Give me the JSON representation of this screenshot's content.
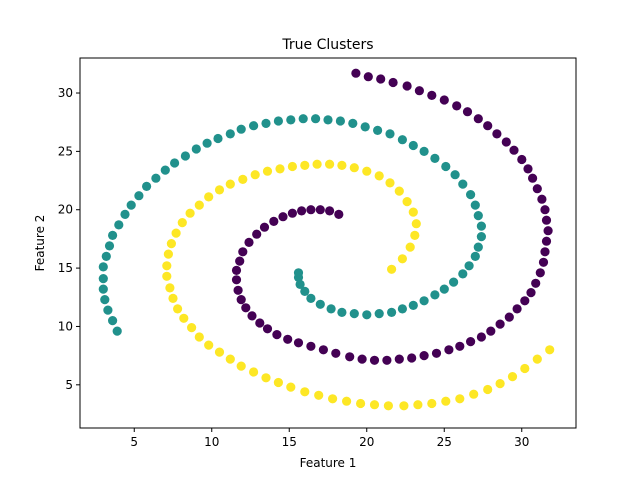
{
  "chart_data": {
    "type": "scatter",
    "title": "True Clusters",
    "xlabel": "Feature 1",
    "ylabel": "Feature 2",
    "xlim": [
      1.5,
      33.5
    ],
    "ylim": [
      1.3,
      33.0
    ],
    "xticks": [
      5,
      10,
      15,
      20,
      25,
      30
    ],
    "yticks": [
      5,
      10,
      15,
      20,
      25,
      30
    ],
    "grid": false,
    "legend": "none",
    "series": [
      {
        "color": "#440154",
        "points": [
          [
            18.2,
            19.6
          ],
          [
            17.6,
            19.9
          ],
          [
            17.0,
            20.0
          ],
          [
            16.4,
            20.0
          ],
          [
            15.8,
            19.9
          ],
          [
            15.2,
            19.7
          ],
          [
            14.6,
            19.4
          ],
          [
            14.0,
            19.0
          ],
          [
            13.4,
            18.5
          ],
          [
            12.9,
            17.9
          ],
          [
            12.4,
            17.2
          ],
          [
            12.0,
            16.4
          ],
          [
            11.8,
            15.6
          ],
          [
            11.6,
            14.8
          ],
          [
            11.6,
            14.0
          ],
          [
            11.7,
            13.1
          ],
          [
            11.9,
            12.3
          ],
          [
            12.2,
            11.6
          ],
          [
            12.6,
            10.9
          ],
          [
            13.1,
            10.3
          ],
          [
            13.6,
            9.8
          ],
          [
            14.2,
            9.3
          ],
          [
            14.9,
            8.9
          ],
          [
            15.6,
            8.6
          ],
          [
            16.4,
            8.3
          ],
          [
            17.2,
            8.0
          ],
          [
            18.0,
            7.7
          ],
          [
            18.9,
            7.4
          ],
          [
            19.7,
            7.2
          ],
          [
            20.5,
            7.1
          ],
          [
            21.3,
            7.1
          ],
          [
            22.1,
            7.2
          ],
          [
            22.9,
            7.3
          ],
          [
            23.7,
            7.5
          ],
          [
            24.5,
            7.7
          ],
          [
            25.3,
            8.0
          ],
          [
            26.0,
            8.3
          ],
          [
            26.7,
            8.7
          ],
          [
            27.4,
            9.1
          ],
          [
            28.0,
            9.6
          ],
          [
            28.6,
            10.2
          ],
          [
            29.2,
            10.8
          ],
          [
            29.7,
            11.5
          ],
          [
            30.2,
            12.2
          ],
          [
            30.6,
            12.9
          ],
          [
            30.9,
            13.7
          ],
          [
            31.2,
            14.6
          ],
          [
            31.4,
            15.5
          ],
          [
            31.5,
            16.4
          ],
          [
            31.6,
            17.3
          ],
          [
            31.7,
            18.2
          ],
          [
            31.6,
            19.1
          ],
          [
            31.5,
            20.0
          ],
          [
            31.3,
            20.9
          ],
          [
            31.0,
            21.8
          ],
          [
            30.7,
            22.7
          ],
          [
            30.4,
            23.5
          ],
          [
            30.0,
            24.3
          ],
          [
            29.5,
            25.1
          ],
          [
            29.0,
            25.8
          ],
          [
            28.4,
            26.5
          ],
          [
            27.8,
            27.2
          ],
          [
            27.2,
            27.8
          ],
          [
            26.5,
            28.4
          ],
          [
            25.8,
            28.9
          ],
          [
            25.0,
            29.4
          ],
          [
            24.2,
            29.8
          ],
          [
            23.4,
            30.2
          ],
          [
            22.6,
            30.6
          ],
          [
            21.7,
            30.9
          ],
          [
            20.9,
            31.2
          ],
          [
            20.1,
            31.4
          ],
          [
            19.3,
            31.7
          ]
        ]
      },
      {
        "color": "#21918c",
        "points": [
          [
            3.9,
            9.6
          ],
          [
            3.6,
            10.5
          ],
          [
            3.3,
            11.4
          ],
          [
            3.1,
            12.3
          ],
          [
            3.0,
            13.2
          ],
          [
            3.0,
            14.1
          ],
          [
            3.0,
            15.1
          ],
          [
            3.2,
            16.0
          ],
          [
            3.4,
            16.9
          ],
          [
            3.6,
            17.8
          ],
          [
            4.0,
            18.7
          ],
          [
            4.4,
            19.6
          ],
          [
            4.8,
            20.4
          ],
          [
            5.3,
            21.2
          ],
          [
            5.8,
            22.0
          ],
          [
            6.4,
            22.7
          ],
          [
            7.0,
            23.4
          ],
          [
            7.6,
            24.0
          ],
          [
            8.3,
            24.6
          ],
          [
            9.0,
            25.2
          ],
          [
            9.7,
            25.7
          ],
          [
            10.4,
            26.1
          ],
          [
            11.2,
            26.5
          ],
          [
            11.9,
            26.9
          ],
          [
            12.7,
            27.2
          ],
          [
            13.5,
            27.4
          ],
          [
            14.3,
            27.6
          ],
          [
            15.1,
            27.7
          ],
          [
            15.9,
            27.8
          ],
          [
            16.7,
            27.8
          ],
          [
            17.5,
            27.7
          ],
          [
            18.3,
            27.6
          ],
          [
            19.1,
            27.4
          ],
          [
            19.9,
            27.1
          ],
          [
            20.7,
            26.8
          ],
          [
            21.5,
            26.5
          ],
          [
            22.3,
            26.0
          ],
          [
            23.0,
            25.5
          ],
          [
            23.7,
            25.0
          ],
          [
            24.4,
            24.4
          ],
          [
            25.1,
            23.7
          ],
          [
            25.7,
            23.0
          ],
          [
            26.2,
            22.2
          ],
          [
            26.7,
            21.3
          ],
          [
            27.0,
            20.4
          ],
          [
            27.2,
            19.5
          ],
          [
            27.4,
            18.6
          ],
          [
            27.4,
            17.7
          ],
          [
            27.2,
            16.8
          ],
          [
            27.0,
            16.0
          ],
          [
            26.6,
            15.2
          ],
          [
            26.2,
            14.5
          ],
          [
            25.6,
            13.8
          ],
          [
            25.0,
            13.2
          ],
          [
            24.4,
            12.7
          ],
          [
            23.7,
            12.2
          ],
          [
            23.0,
            11.8
          ],
          [
            22.3,
            11.5
          ],
          [
            21.6,
            11.2
          ],
          [
            20.8,
            11.1
          ],
          [
            20.0,
            11.0
          ],
          [
            19.2,
            11.1
          ],
          [
            18.4,
            11.2
          ],
          [
            17.7,
            11.5
          ],
          [
            17.0,
            11.9
          ],
          [
            16.4,
            12.4
          ],
          [
            16.0,
            13.0
          ],
          [
            15.7,
            13.6
          ],
          [
            15.6,
            14.2
          ],
          [
            15.6,
            14.6
          ]
        ]
      },
      {
        "color": "#fde725",
        "points": [
          [
            21.6,
            14.9
          ],
          [
            22.3,
            15.8
          ],
          [
            22.8,
            16.8
          ],
          [
            23.1,
            17.8
          ],
          [
            23.2,
            18.8
          ],
          [
            23.0,
            19.8
          ],
          [
            22.6,
            20.7
          ],
          [
            22.1,
            21.6
          ],
          [
            21.5,
            22.3
          ],
          [
            20.8,
            22.9
          ],
          [
            20.0,
            23.3
          ],
          [
            19.2,
            23.6
          ],
          [
            18.4,
            23.8
          ],
          [
            17.6,
            23.9
          ],
          [
            16.8,
            23.9
          ],
          [
            16.0,
            23.8
          ],
          [
            15.2,
            23.7
          ],
          [
            14.4,
            23.5
          ],
          [
            13.6,
            23.3
          ],
          [
            12.8,
            23.0
          ],
          [
            12.0,
            22.6
          ],
          [
            11.2,
            22.2
          ],
          [
            10.5,
            21.7
          ],
          [
            9.8,
            21.1
          ],
          [
            9.2,
            20.4
          ],
          [
            8.6,
            19.7
          ],
          [
            8.1,
            18.9
          ],
          [
            7.7,
            18.0
          ],
          [
            7.4,
            17.1
          ],
          [
            7.2,
            16.2
          ],
          [
            7.1,
            15.2
          ],
          [
            7.1,
            14.3
          ],
          [
            7.3,
            13.3
          ],
          [
            7.5,
            12.4
          ],
          [
            7.8,
            11.5
          ],
          [
            8.2,
            10.7
          ],
          [
            8.7,
            9.9
          ],
          [
            9.2,
            9.1
          ],
          [
            9.8,
            8.4
          ],
          [
            10.5,
            7.8
          ],
          [
            11.2,
            7.2
          ],
          [
            11.9,
            6.6
          ],
          [
            12.7,
            6.1
          ],
          [
            13.5,
            5.6
          ],
          [
            14.3,
            5.2
          ],
          [
            15.1,
            4.8
          ],
          [
            16.0,
            4.4
          ],
          [
            16.9,
            4.1
          ],
          [
            17.8,
            3.8
          ],
          [
            18.7,
            3.6
          ],
          [
            19.6,
            3.4
          ],
          [
            20.5,
            3.3
          ],
          [
            21.4,
            3.2
          ],
          [
            22.4,
            3.2
          ],
          [
            23.3,
            3.3
          ],
          [
            24.2,
            3.4
          ],
          [
            25.1,
            3.6
          ],
          [
            26.0,
            3.8
          ],
          [
            26.9,
            4.2
          ],
          [
            27.8,
            4.6
          ],
          [
            28.6,
            5.1
          ],
          [
            29.4,
            5.7
          ],
          [
            30.2,
            6.4
          ],
          [
            31.0,
            7.2
          ],
          [
            31.8,
            8.0
          ]
        ]
      }
    ]
  }
}
